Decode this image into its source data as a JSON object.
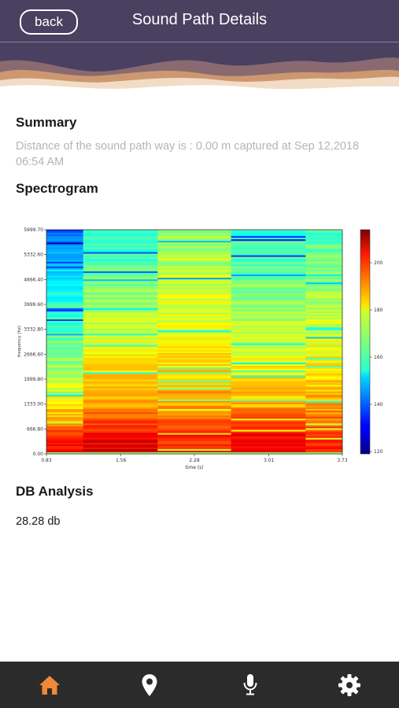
{
  "header": {
    "back_label": "back",
    "title": "Sound Path Details"
  },
  "summary": {
    "heading": "Summary",
    "text": "Distance of the sound path way is : 0.00 m captured at Sep 12,2018 06:54 AM"
  },
  "spectrogram": {
    "heading": "Spectrogram",
    "chart_data": {
      "type": "heatmap",
      "xlabel": "time (s)",
      "ylabel": "frequency (hz)",
      "x_ticks": [
        "0.83",
        "1.56",
        "2.28",
        "3.01",
        "3.73"
      ],
      "y_ticks": [
        "0.00",
        "666.80",
        "1333.00",
        "1999.80",
        "2666.60",
        "3332.80",
        "3999.60",
        "4666.40",
        "5332.60",
        "5999.70"
      ],
      "xlim": [
        0.83,
        3.73
      ],
      "ylim": [
        0,
        5999.7
      ],
      "colorbar_ticks": [
        "120",
        "140",
        "160",
        "180",
        "200"
      ],
      "colorbar_range": [
        119,
        214
      ],
      "colormap": "jet",
      "time_segments": [
        0.83,
        1.19,
        1.92,
        2.64,
        3.37,
        3.73
      ],
      "segment_profiles": [
        [
          200,
          180,
          165,
          160,
          150,
          140
        ],
        [
          205,
          188,
          178,
          172,
          164,
          156
        ],
        [
          200,
          188,
          180,
          176,
          172,
          168
        ],
        [
          205,
          186,
          176,
          170,
          164,
          158
        ],
        [
          200,
          186,
          178,
          172,
          166,
          160
        ]
      ],
      "profile_freqs": [
        300,
        1300,
        2700,
        3700,
        5000,
        6000
      ]
    }
  },
  "db_analysis": {
    "heading": "DB Analysis",
    "value": "28.28 db"
  },
  "tabbar": {
    "active_color": "#f0883a",
    "inactive_color": "#ffffff",
    "items": [
      {
        "icon": "home-icon",
        "active": true
      },
      {
        "icon": "location-pin-icon",
        "active": false
      },
      {
        "icon": "microphone-icon",
        "active": false
      },
      {
        "icon": "gear-icon",
        "active": false
      }
    ]
  },
  "colors": {
    "header_bg": "#4a4060",
    "tabbar_bg": "#2b2b2b",
    "summary_text": "#b5b5b5"
  }
}
